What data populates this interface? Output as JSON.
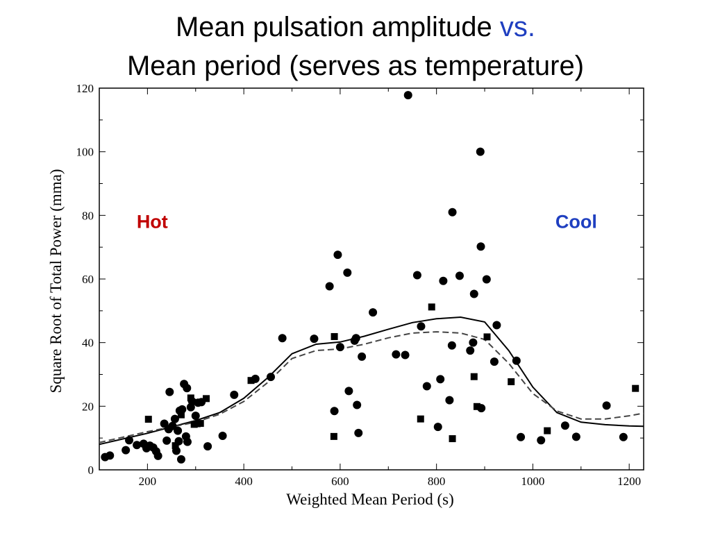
{
  "title": {
    "line1_main": "Mean pulsation amplitude",
    "line1_vs": "vs.",
    "line2": "Mean period (serves as temperature)",
    "vs_color": "#1f3fc0"
  },
  "chart_data": {
    "type": "scatter",
    "xlabel": "Weighted Mean Period (s)",
    "ylabel": "Square Root of Total Power (mma)",
    "xlim": [
      100,
      1230
    ],
    "ylim": [
      0,
      120
    ],
    "xticks": [
      200,
      400,
      600,
      800,
      1000,
      1200
    ],
    "yticks": [
      0,
      20,
      40,
      60,
      80,
      100,
      120
    ],
    "grid": false,
    "annotations": [
      {
        "text": "Hot",
        "x": 210,
        "y": 76,
        "color": "#c00000"
      },
      {
        "text": "Cool",
        "x": 1090,
        "y": 76,
        "color": "#1f3fc0"
      }
    ],
    "series": [
      {
        "marker": "circle",
        "points": [
          [
            112,
            4
          ],
          [
            122,
            4.5
          ],
          [
            155,
            6.2
          ],
          [
            162,
            9.3
          ],
          [
            178,
            7.8
          ],
          [
            192,
            8.2
          ],
          [
            198,
            6.8
          ],
          [
            205,
            7.6
          ],
          [
            212,
            7
          ],
          [
            218,
            5.8
          ],
          [
            222,
            4.4
          ],
          [
            235,
            14.5
          ],
          [
            240,
            9.2
          ],
          [
            244,
            12.8
          ],
          [
            246,
            24.5
          ],
          [
            252,
            13.8
          ],
          [
            257,
            16
          ],
          [
            260,
            6
          ],
          [
            263,
            12.3
          ],
          [
            265,
            9
          ],
          [
            267,
            18.6
          ],
          [
            270,
            3.3
          ],
          [
            272,
            19
          ],
          [
            276,
            27
          ],
          [
            280,
            10.5
          ],
          [
            282,
            25.7
          ],
          [
            283,
            8.8
          ],
          [
            290,
            19.7
          ],
          [
            293,
            21.5
          ],
          [
            300,
            17
          ],
          [
            305,
            21.1
          ],
          [
            312,
            21.3
          ],
          [
            325,
            7.4
          ],
          [
            356,
            10.7
          ],
          [
            380,
            23.6
          ],
          [
            424,
            28.6
          ],
          [
            456,
            29.2
          ],
          [
            480,
            41.4
          ],
          [
            546,
            41.2
          ],
          [
            578,
            57.7
          ],
          [
            588,
            18.5
          ],
          [
            595,
            67.6
          ],
          [
            600,
            38.6
          ],
          [
            615,
            62
          ],
          [
            618,
            24.8
          ],
          [
            630,
            40.6
          ],
          [
            633,
            41.4
          ],
          [
            635,
            20.4
          ],
          [
            638,
            11.6
          ],
          [
            645,
            35.6
          ],
          [
            668,
            49.5
          ],
          [
            716,
            36.3
          ],
          [
            735,
            36.1
          ],
          [
            741,
            117.8
          ],
          [
            760,
            61.2
          ],
          [
            768,
            45.1
          ],
          [
            780,
            26.3
          ],
          [
            803,
            13.5
          ],
          [
            808,
            28.5
          ],
          [
            814,
            59.4
          ],
          [
            827,
            21.9
          ],
          [
            832,
            39.1
          ],
          [
            833,
            81
          ],
          [
            848,
            61
          ],
          [
            870,
            37.5
          ],
          [
            876,
            40
          ],
          [
            878,
            55.3
          ],
          [
            891,
            100
          ],
          [
            892,
            70.2
          ],
          [
            893,
            19.4
          ],
          [
            904,
            59.9
          ],
          [
            920,
            34
          ],
          [
            925,
            45.5
          ],
          [
            966,
            34.3
          ],
          [
            975,
            10.3
          ],
          [
            1017,
            9.3
          ],
          [
            1067,
            13.9
          ],
          [
            1090,
            10.4
          ],
          [
            1153,
            20.2
          ],
          [
            1188,
            10.3
          ]
        ]
      },
      {
        "marker": "square",
        "points": [
          [
            202,
            15.9
          ],
          [
            258,
            7.6
          ],
          [
            270,
            17.3
          ],
          [
            290,
            22.6
          ],
          [
            297,
            14.3
          ],
          [
            303,
            14.5
          ],
          [
            310,
            14.6
          ],
          [
            322,
            22.4
          ],
          [
            415,
            28.1
          ],
          [
            587,
            10.5
          ],
          [
            588,
            41.9
          ],
          [
            767,
            16
          ],
          [
            790,
            51.2
          ],
          [
            833,
            9.8
          ],
          [
            878,
            29.3
          ],
          [
            884,
            19.9
          ],
          [
            905,
            41.8
          ],
          [
            955,
            27.7
          ],
          [
            1030,
            12.3
          ],
          [
            1213,
            25.6
          ]
        ]
      },
      {
        "name": "solid",
        "style": "line",
        "points": [
          [
            100,
            8
          ],
          [
            200,
            11.5
          ],
          [
            300,
            15.5
          ],
          [
            350,
            18
          ],
          [
            400,
            22.5
          ],
          [
            450,
            29
          ],
          [
            500,
            36.5
          ],
          [
            550,
            39.5
          ],
          [
            600,
            40.2
          ],
          [
            650,
            42
          ],
          [
            700,
            44.2
          ],
          [
            750,
            46.3
          ],
          [
            800,
            47.5
          ],
          [
            850,
            48
          ],
          [
            900,
            46.5
          ],
          [
            950,
            37.5
          ],
          [
            1000,
            26
          ],
          [
            1050,
            18
          ],
          [
            1100,
            15
          ],
          [
            1150,
            14.2
          ],
          [
            1200,
            13.8
          ],
          [
            1230,
            13.7
          ]
        ]
      },
      {
        "name": "dashed",
        "style": "dashed-line",
        "points": [
          [
            100,
            8.6
          ],
          [
            200,
            12
          ],
          [
            300,
            15
          ],
          [
            350,
            17.5
          ],
          [
            400,
            21.5
          ],
          [
            450,
            27.5
          ],
          [
            500,
            35
          ],
          [
            550,
            37.5
          ],
          [
            600,
            38
          ],
          [
            650,
            39.5
          ],
          [
            700,
            41.5
          ],
          [
            750,
            43
          ],
          [
            800,
            43.4
          ],
          [
            850,
            43
          ],
          [
            900,
            41
          ],
          [
            950,
            33.5
          ],
          [
            1000,
            24
          ],
          [
            1050,
            18.5
          ],
          [
            1100,
            16
          ],
          [
            1150,
            16
          ],
          [
            1200,
            17
          ],
          [
            1230,
            17.8
          ]
        ]
      }
    ]
  }
}
